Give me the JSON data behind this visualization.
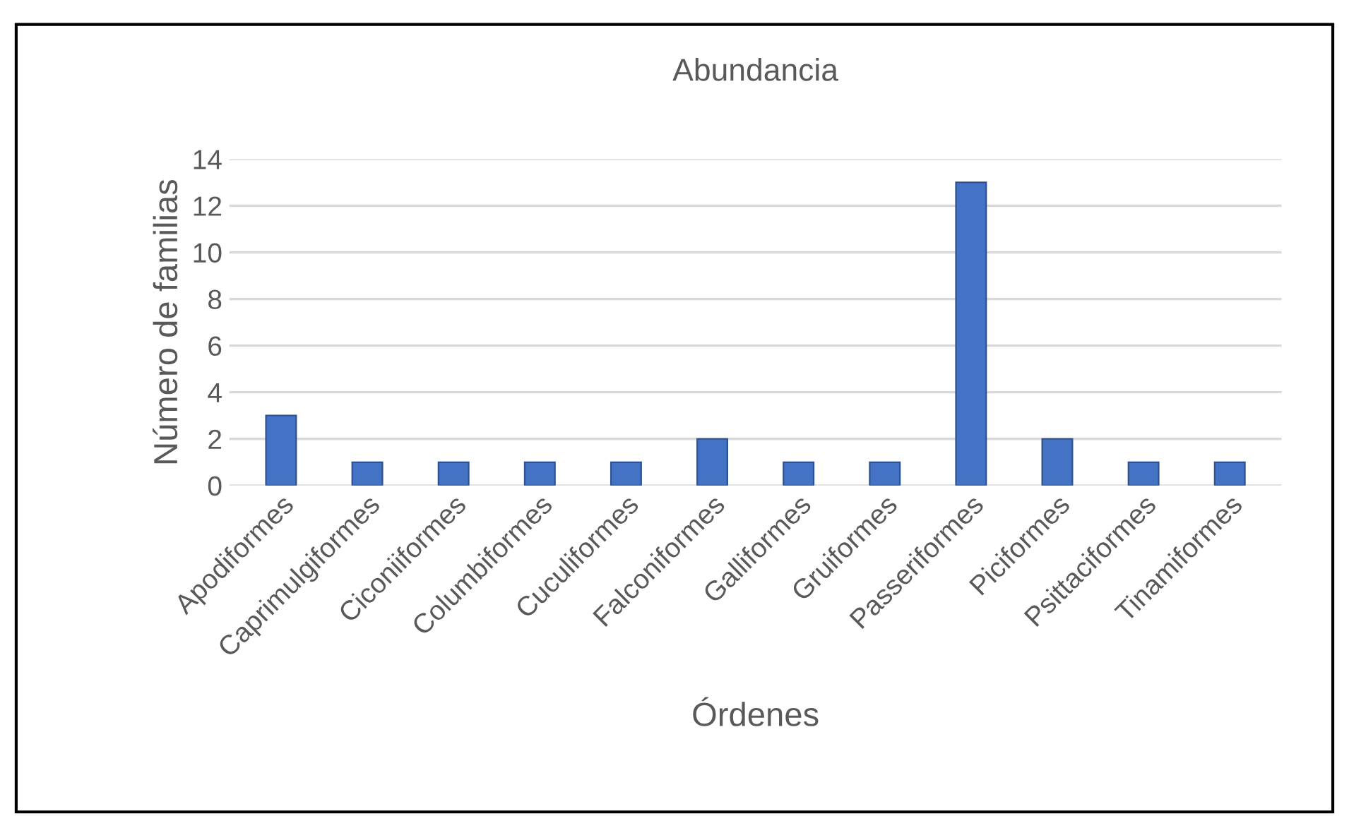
{
  "chart_data": {
    "type": "bar",
    "title": "Abundancia",
    "xlabel": "Órdenes",
    "ylabel": "Número de familias",
    "categories": [
      "Apodiformes",
      "Caprimulgiformes",
      "Ciconiiformes",
      "Columbiformes",
      "Cuculiformes",
      "Falconiformes",
      "Galliformes",
      "Gruiformes",
      "Passeriformes",
      "Piciformes",
      "Psittaciformes",
      "Tinamiformes"
    ],
    "values": [
      3,
      1,
      1,
      1,
      1,
      2,
      1,
      1,
      13,
      2,
      1,
      1
    ],
    "color": "#4472c4",
    "ylim": [
      0,
      14
    ],
    "yticks": [
      0,
      2,
      4,
      6,
      8,
      10,
      12,
      14
    ],
    "grid": "y"
  }
}
